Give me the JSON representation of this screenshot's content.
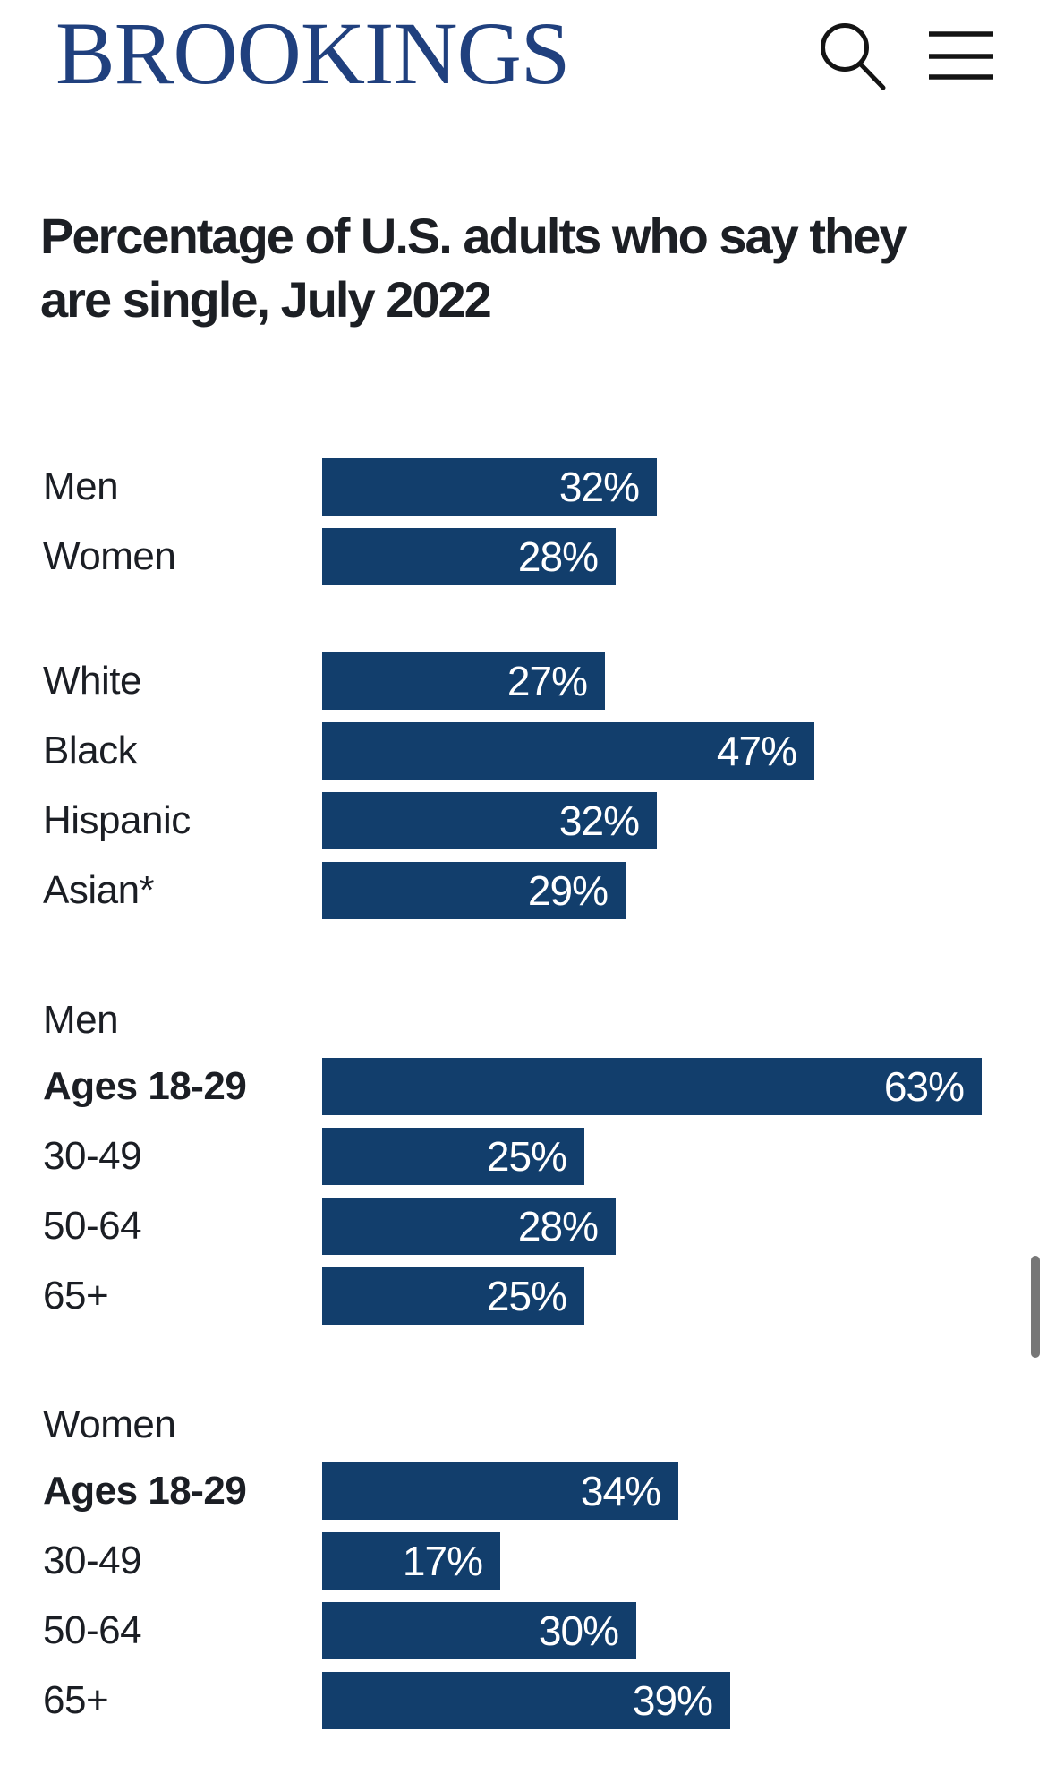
{
  "header": {
    "logo_text": "BROOKINGS",
    "search_icon": "magnifying-glass",
    "menu_icon": "hamburger-menu"
  },
  "title": {
    "line1": "Percentage of U.S. adults who say they",
    "line2": "are single, July 2022"
  },
  "chart_data": {
    "type": "bar",
    "orientation": "horizontal",
    "title": "Percentage of U.S. adults who say they are single, July 2022",
    "value_unit": "%",
    "value_axis_range": [
      0,
      70
    ],
    "gridlines": false,
    "legend": "none",
    "axis_ticks_visible": false,
    "bar_color": "#123e6c",
    "value_label_color": "#ffffff",
    "label_color": "#1b1e24",
    "groups": [
      {
        "header": "",
        "rows": [
          {
            "label": "Men",
            "value": 32
          },
          {
            "label": "Women",
            "value": 28
          }
        ]
      },
      {
        "header": "",
        "rows": [
          {
            "label": "White",
            "value": 27
          },
          {
            "label": "Black",
            "value": 47
          },
          {
            "label": "Hispanic",
            "value": 32
          },
          {
            "label": "Asian*",
            "value": 29
          }
        ]
      },
      {
        "header": "Men",
        "rows": [
          {
            "label": "Ages 18-29",
            "value": 63,
            "emphasis": true
          },
          {
            "label": "30-49",
            "value": 25
          },
          {
            "label": "50-64",
            "value": 28
          },
          {
            "label": "65+",
            "value": 25
          }
        ]
      },
      {
        "header": "Women",
        "rows": [
          {
            "label": "Ages 18-29",
            "value": 34,
            "emphasis": true
          },
          {
            "label": "30-49",
            "value": 17
          },
          {
            "label": "50-64",
            "value": 30
          },
          {
            "label": "65+",
            "value": 39
          }
        ]
      }
    ]
  },
  "colors": {
    "logo_blue": "#20407e",
    "icon_black": "#141414",
    "text": "#1b1e24",
    "scrollbar_grey": "#777777",
    "background": "#ffffff"
  }
}
